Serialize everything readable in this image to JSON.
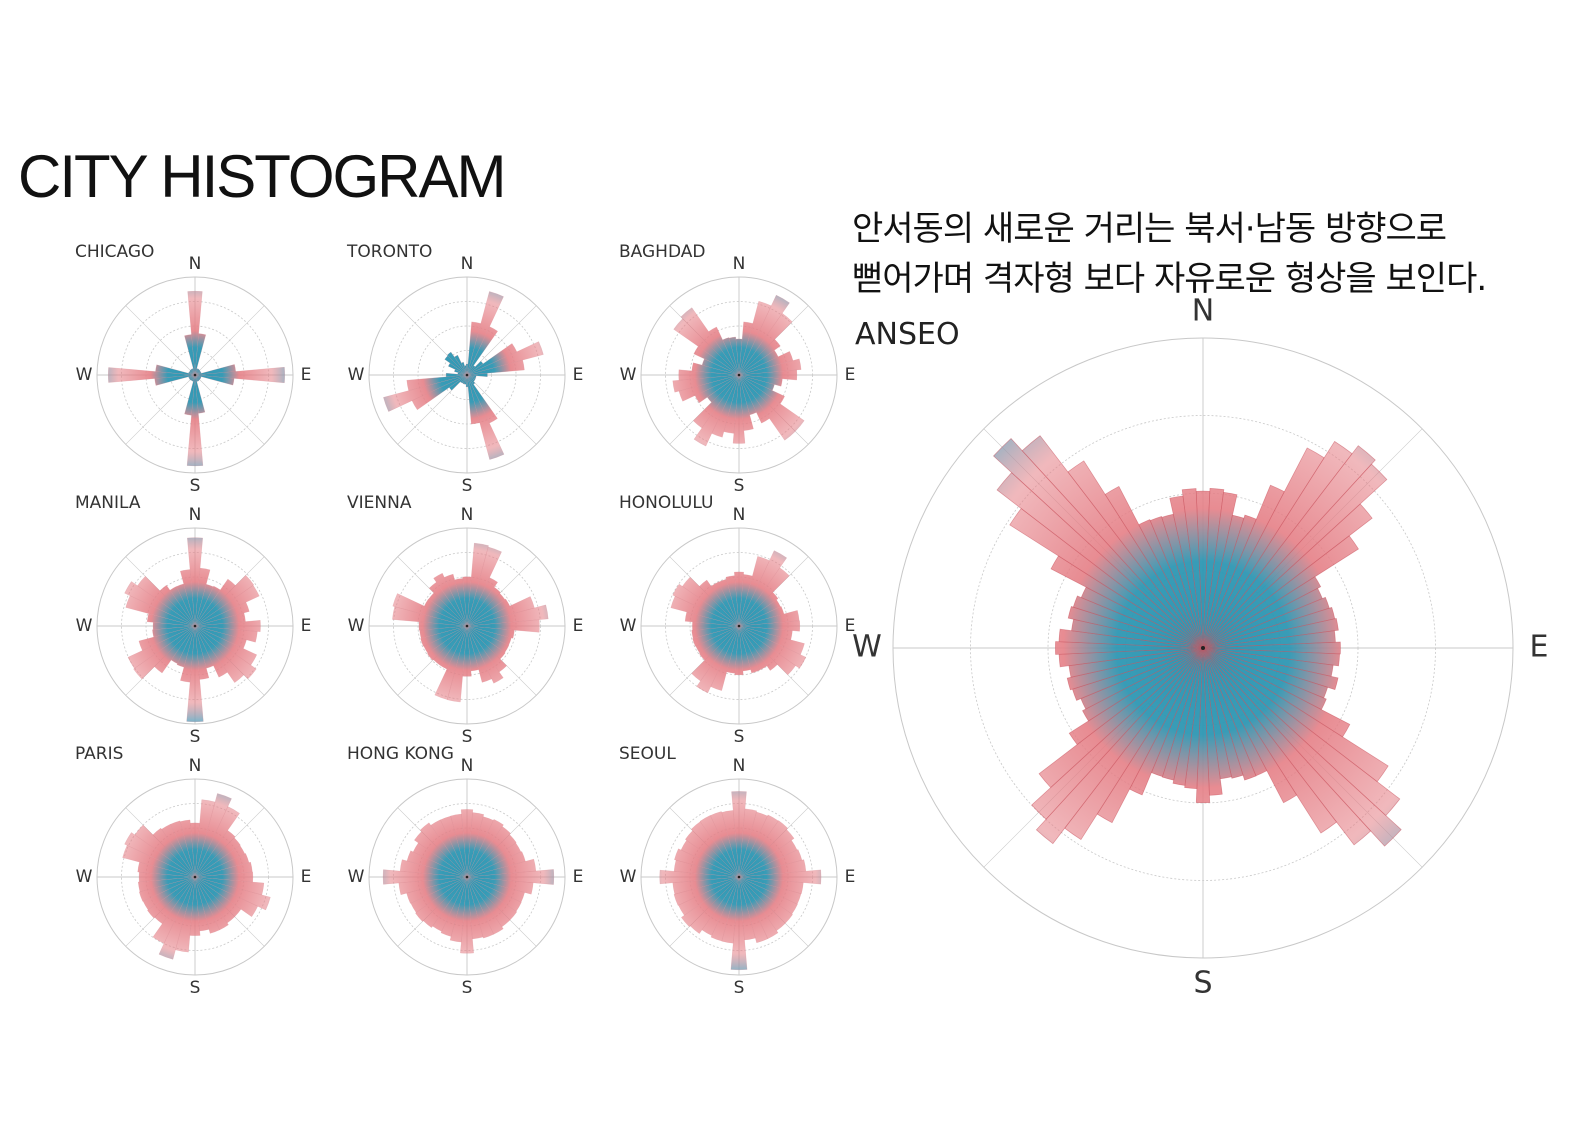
{
  "title": "CITY HISTOGRAM",
  "caption": {
    "line1": "안서동의  새로운  거리는  북서·남동  방향으로",
    "line2": "뻗어가며 격자형 보다 자유로운 형상을 보인다."
  },
  "directions": {
    "n": "N",
    "e": "E",
    "s": "S",
    "w": "W"
  },
  "colors": {
    "center": "#2e97b3",
    "mid": "#e57f86",
    "outer": "#5aaec9",
    "ring": "#c8c8c8"
  },
  "chart_data": [
    {
      "type": "polar-bar",
      "name": "CHICAGO",
      "bins": 36,
      "base": 0.07,
      "peaks": [
        [
          0,
          0.93,
          8
        ],
        [
          90,
          0.93,
          8
        ],
        [
          180,
          0.93,
          8
        ],
        [
          270,
          0.93,
          8
        ]
      ]
    },
    {
      "type": "polar-bar",
      "name": "TORONTO",
      "bins": 36,
      "base": 0.1,
      "peaks": [
        [
          20,
          0.9,
          10
        ],
        [
          70,
          0.85,
          12
        ],
        [
          160,
          0.9,
          10
        ],
        [
          250,
          0.9,
          12
        ],
        [
          315,
          0.3,
          20
        ]
      ]
    },
    {
      "type": "polar-bar",
      "name": "BAGHDAD",
      "bins": 36,
      "base": 0.4,
      "peaks": [
        [
          30,
          0.9,
          20
        ],
        [
          135,
          0.9,
          15
        ],
        [
          210,
          0.85,
          15
        ],
        [
          315,
          0.9,
          15
        ],
        [
          80,
          0.65,
          25
        ],
        [
          260,
          0.7,
          25
        ],
        [
          180,
          0.7,
          20
        ]
      ]
    },
    {
      "type": "polar-bar",
      "name": "MANILA",
      "bins": 36,
      "base": 0.45,
      "peaks": [
        [
          0,
          0.98,
          10
        ],
        [
          55,
          0.8,
          20
        ],
        [
          130,
          0.8,
          25
        ],
        [
          180,
          0.98,
          10
        ],
        [
          235,
          0.8,
          20
        ],
        [
          300,
          0.85,
          20
        ],
        [
          95,
          0.7,
          20
        ]
      ]
    },
    {
      "type": "polar-bar",
      "name": "VIENNA",
      "bins": 36,
      "base": 0.5,
      "peaks": [
        [
          15,
          0.9,
          15
        ],
        [
          80,
          0.85,
          20
        ],
        [
          195,
          0.85,
          15
        ],
        [
          285,
          0.85,
          15
        ],
        [
          150,
          0.65,
          25
        ],
        [
          330,
          0.6,
          25
        ]
      ]
    },
    {
      "type": "polar-bar",
      "name": "HONOLULU",
      "bins": 36,
      "base": 0.5,
      "peaks": [
        [
          30,
          0.85,
          20
        ],
        [
          120,
          0.8,
          25
        ],
        [
          210,
          0.8,
          20
        ],
        [
          300,
          0.8,
          25
        ],
        [
          85,
          0.65,
          20
        ],
        [
          0,
          0.6,
          20
        ]
      ]
    },
    {
      "type": "polar-bar",
      "name": "PARIS",
      "bins": 36,
      "base": 0.6,
      "peaks": [
        [
          20,
          0.9,
          20
        ],
        [
          110,
          0.85,
          20
        ],
        [
          200,
          0.9,
          20
        ],
        [
          300,
          0.85,
          25
        ]
      ]
    },
    {
      "type": "polar-bar",
      "name": "HONG KONG",
      "bins": 36,
      "base": 0.65,
      "peaks": [
        [
          90,
          0.9,
          15
        ],
        [
          270,
          0.9,
          15
        ],
        [
          0,
          0.75,
          20
        ],
        [
          180,
          0.78,
          20
        ],
        [
          315,
          0.7,
          25
        ]
      ]
    },
    {
      "type": "polar-bar",
      "name": "SEOUL",
      "bins": 36,
      "base": 0.7,
      "peaks": [
        [
          0,
          0.95,
          10
        ],
        [
          180,
          0.95,
          10
        ],
        [
          90,
          0.85,
          15
        ],
        [
          270,
          0.85,
          15
        ],
        [
          45,
          0.75,
          20
        ],
        [
          225,
          0.75,
          20
        ]
      ]
    },
    {
      "type": "polar-bar",
      "name": "ANSEO",
      "bins": 72,
      "base": 0.45,
      "peaks": [
        [
          40,
          0.85,
          18
        ],
        [
          135,
          0.88,
          16
        ],
        [
          220,
          0.82,
          16
        ],
        [
          315,
          0.92,
          16
        ],
        [
          0,
          0.55,
          25
        ],
        [
          90,
          0.45,
          20
        ],
        [
          180,
          0.5,
          25
        ],
        [
          270,
          0.5,
          20
        ]
      ]
    }
  ]
}
